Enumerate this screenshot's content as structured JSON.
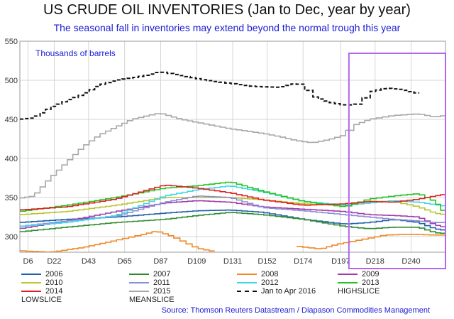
{
  "title": "US CRUDE OIL INVENTORIES (Jan to Dec, year by year)",
  "subtitle": "The seasonal fall in inventories may extend beyond the normal trough this year",
  "source": "Source: Thomson Reuters Datastream / Diapason Commodities Management",
  "chart_data": {
    "type": "line",
    "unit_label": "Thousands of barrels",
    "ylim": [
      280,
      550
    ],
    "yticks": [
      300,
      350,
      400,
      450,
      500,
      550
    ],
    "xlim": [
      1,
      261
    ],
    "xticks": [
      {
        "x": 6,
        "label": "D6"
      },
      {
        "x": 22,
        "label": "D22"
      },
      {
        "x": 43,
        "label": "D43"
      },
      {
        "x": 65,
        "label": "D65"
      },
      {
        "x": 87,
        "label": "D87"
      },
      {
        "x": 109,
        "label": "D109"
      },
      {
        "x": 131,
        "label": "D131"
      },
      {
        "x": 152,
        "label": "D152"
      },
      {
        "x": 174,
        "label": "D174"
      },
      {
        "x": 197,
        "label": "D197"
      },
      {
        "x": 218,
        "label": "D218"
      },
      {
        "x": 240,
        "label": "D240"
      }
    ],
    "grid": true,
    "highlight_box": {
      "x_start": 202,
      "x_end": 261,
      "color": "#b266ee"
    },
    "series": [
      {
        "name": "2006",
        "color": "#1f5fa8",
        "dash": false,
        "points": [
          [
            1,
            318
          ],
          [
            30,
            322
          ],
          [
            60,
            325
          ],
          [
            90,
            330
          ],
          [
            110,
            333
          ],
          [
            130,
            334
          ],
          [
            150,
            331
          ],
          [
            175,
            322
          ],
          [
            200,
            316
          ],
          [
            215,
            318
          ],
          [
            230,
            322
          ],
          [
            245,
            318
          ],
          [
            255,
            310
          ],
          [
            261,
            308
          ]
        ]
      },
      {
        "name": "2007",
        "color": "#2e8b2e",
        "dash": false,
        "points": [
          [
            1,
            306
          ],
          [
            30,
            312
          ],
          [
            60,
            318
          ],
          [
            90,
            322
          ],
          [
            110,
            327
          ],
          [
            130,
            331
          ],
          [
            150,
            328
          ],
          [
            175,
            322
          ],
          [
            200,
            313
          ],
          [
            215,
            310
          ],
          [
            230,
            312
          ],
          [
            245,
            312
          ],
          [
            255,
            305
          ],
          [
            261,
            304
          ]
        ]
      },
      {
        "name": "2008",
        "color": "#ee8a2a",
        "dash": false,
        "points": [
          [
            1,
            282
          ],
          [
            20,
            280
          ],
          [
            40,
            286
          ],
          [
            60,
            295
          ],
          [
            75,
            302
          ],
          [
            85,
            307
          ],
          [
            95,
            300
          ],
          [
            110,
            285
          ],
          [
            120,
            281
          ]
        ],
        "points2": [
          [
            170,
            288
          ],
          [
            185,
            284
          ],
          [
            195,
            290
          ],
          [
            210,
            296
          ],
          [
            225,
            302
          ],
          [
            240,
            303
          ],
          [
            255,
            302
          ],
          [
            261,
            302
          ]
        ]
      },
      {
        "name": "2009",
        "color": "#a23ea8",
        "dash": false,
        "points": [
          [
            1,
            310
          ],
          [
            30,
            320
          ],
          [
            60,
            332
          ],
          [
            90,
            343
          ],
          [
            110,
            346
          ],
          [
            130,
            344
          ],
          [
            150,
            338
          ],
          [
            175,
            335
          ],
          [
            200,
            332
          ],
          [
            215,
            328
          ],
          [
            230,
            327
          ],
          [
            245,
            325
          ],
          [
            255,
            315
          ],
          [
            261,
            312
          ]
        ]
      },
      {
        "name": "2010",
        "color": "#b8c631",
        "dash": false,
        "points": [
          [
            1,
            328
          ],
          [
            30,
            332
          ],
          [
            60,
            340
          ],
          [
            90,
            350
          ],
          [
            110,
            350
          ],
          [
            130,
            350
          ],
          [
            150,
            347
          ],
          [
            175,
            342
          ],
          [
            200,
            340
          ],
          [
            215,
            345
          ],
          [
            230,
            345
          ],
          [
            245,
            338
          ],
          [
            255,
            330
          ],
          [
            261,
            328
          ]
        ]
      },
      {
        "name": "2011",
        "color": "#8c8cd8",
        "dash": false,
        "points": [
          [
            1,
            313
          ],
          [
            30,
            320
          ],
          [
            60,
            326
          ],
          [
            90,
            344
          ],
          [
            110,
            352
          ],
          [
            130,
            350
          ],
          [
            150,
            337
          ],
          [
            175,
            333
          ],
          [
            200,
            328
          ],
          [
            215,
            325
          ],
          [
            230,
            322
          ],
          [
            245,
            320
          ],
          [
            255,
            318
          ],
          [
            261,
            318
          ]
        ]
      },
      {
        "name": "2012",
        "color": "#3fd6e8",
        "dash": false,
        "points": [
          [
            1,
            313
          ],
          [
            30,
            318
          ],
          [
            60,
            327
          ],
          [
            90,
            352
          ],
          [
            110,
            360
          ],
          [
            130,
            365
          ],
          [
            150,
            357
          ],
          [
            175,
            345
          ],
          [
            200,
            340
          ],
          [
            215,
            343
          ],
          [
            230,
            346
          ],
          [
            245,
            344
          ],
          [
            255,
            341
          ],
          [
            261,
            339
          ]
        ]
      },
      {
        "name": "2013",
        "color": "#22c422",
        "dash": false,
        "points": [
          [
            1,
            332
          ],
          [
            30,
            340
          ],
          [
            60,
            350
          ],
          [
            90,
            362
          ],
          [
            110,
            365
          ],
          [
            130,
            370
          ],
          [
            150,
            358
          ],
          [
            175,
            345
          ],
          [
            200,
            338
          ],
          [
            215,
            348
          ],
          [
            230,
            352
          ],
          [
            245,
            355
          ],
          [
            255,
            345
          ],
          [
            261,
            330
          ]
        ]
      },
      {
        "name": "2014",
        "color": "#e02020",
        "dash": false,
        "points": [
          [
            1,
            334
          ],
          [
            30,
            338
          ],
          [
            60,
            348
          ],
          [
            90,
            366
          ],
          [
            110,
            362
          ],
          [
            130,
            356
          ],
          [
            150,
            347
          ],
          [
            175,
            340
          ],
          [
            200,
            342
          ],
          [
            215,
            345
          ],
          [
            230,
            344
          ],
          [
            245,
            348
          ],
          [
            255,
            352
          ],
          [
            261,
            354
          ]
        ]
      },
      {
        "name": "2015",
        "color": "#a8a8a8",
        "dash": false,
        "points": [
          [
            1,
            349
          ],
          [
            10,
            352
          ],
          [
            20,
            375
          ],
          [
            30,
            395
          ],
          [
            40,
            415
          ],
          [
            50,
            430
          ],
          [
            60,
            440
          ],
          [
            70,
            450
          ],
          [
            80,
            455
          ],
          [
            87,
            458
          ],
          [
            100,
            450
          ],
          [
            110,
            446
          ],
          [
            120,
            442
          ],
          [
            130,
            438
          ],
          [
            140,
            435
          ],
          [
            150,
            432
          ],
          [
            160,
            428
          ],
          [
            170,
            423
          ],
          [
            180,
            420
          ],
          [
            190,
            424
          ],
          [
            200,
            430
          ],
          [
            205,
            442
          ],
          [
            215,
            450
          ],
          [
            230,
            455
          ],
          [
            245,
            457
          ],
          [
            255,
            453
          ],
          [
            261,
            455
          ]
        ]
      },
      {
        "name": "Jan to Apr 2016",
        "color": "#111111",
        "dash": true,
        "points": [
          [
            1,
            450
          ],
          [
            10,
            452
          ],
          [
            20,
            465
          ],
          [
            30,
            474
          ],
          [
            40,
            482
          ],
          [
            50,
            494
          ],
          [
            60,
            500
          ],
          [
            70,
            503
          ],
          [
            80,
            507
          ],
          [
            87,
            511
          ],
          [
            95,
            508
          ],
          [
            105,
            504
          ],
          [
            115,
            500
          ],
          [
            130,
            496
          ],
          [
            145,
            492
          ],
          [
            160,
            491
          ],
          [
            170,
            496
          ],
          [
            175,
            494
          ],
          [
            180,
            480
          ],
          [
            190,
            472
          ],
          [
            200,
            468
          ],
          [
            205,
            469
          ],
          [
            210,
            470
          ],
          [
            215,
            485
          ],
          [
            225,
            490
          ],
          [
            235,
            488
          ],
          [
            245,
            483
          ]
        ]
      },
      {
        "name": "HIGHSLICE",
        "color": "",
        "dash": false,
        "points": []
      },
      {
        "name": "LOWSLICE",
        "color": "",
        "dash": false,
        "points": []
      },
      {
        "name": "MEANSLICE",
        "color": "",
        "dash": false,
        "points": []
      }
    ],
    "legend_position": "bottom"
  }
}
